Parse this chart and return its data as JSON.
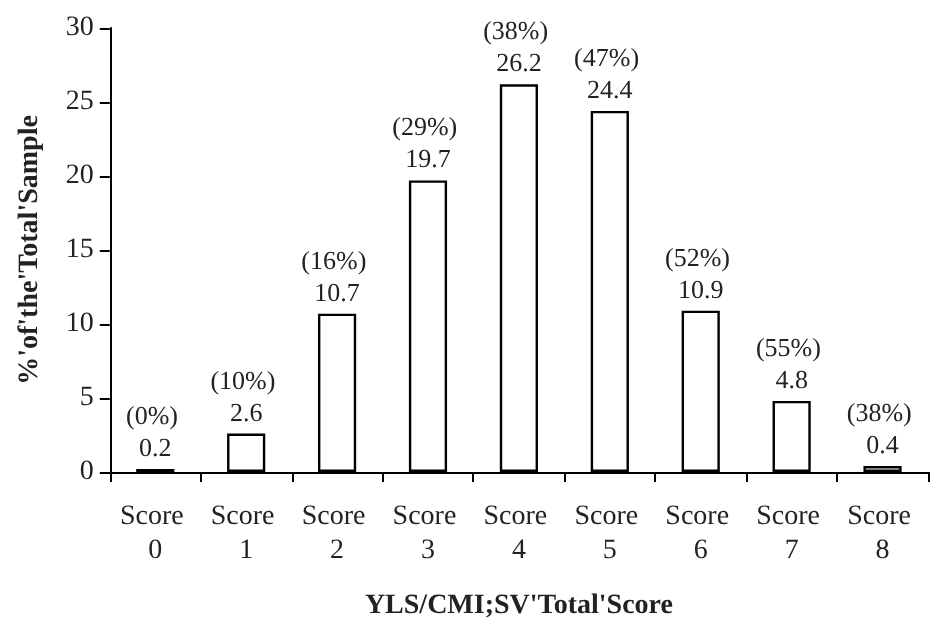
{
  "chart_data": {
    "type": "bar",
    "xlabel": "YLS/CMI;SV'Total'Score",
    "ylabel": "%'of'the'Total'Sample",
    "categories": [
      "Score 0",
      "Score 1",
      "Score 2",
      "Score 3",
      "Score 4",
      "Score 5",
      "Score 6",
      "Score 7",
      "Score 8"
    ],
    "values": [
      0.2,
      2.6,
      10.7,
      19.7,
      26.2,
      24.4,
      10.9,
      4.8,
      0.4
    ],
    "value_labels": [
      "(0%) 0.2",
      "(10%) 2.6",
      "(16%) 10.7",
      "(29%) 19.7",
      "(38%) 26.2",
      "(47%) 24.4",
      "(52%) 10.9",
      "(55%) 4.8",
      "(38%) 0.4"
    ],
    "color": "#ffffff",
    "ylim": [
      0,
      30
    ],
    "yticks": [
      0,
      5,
      10,
      15,
      20,
      25,
      30
    ],
    "grid": false
  }
}
